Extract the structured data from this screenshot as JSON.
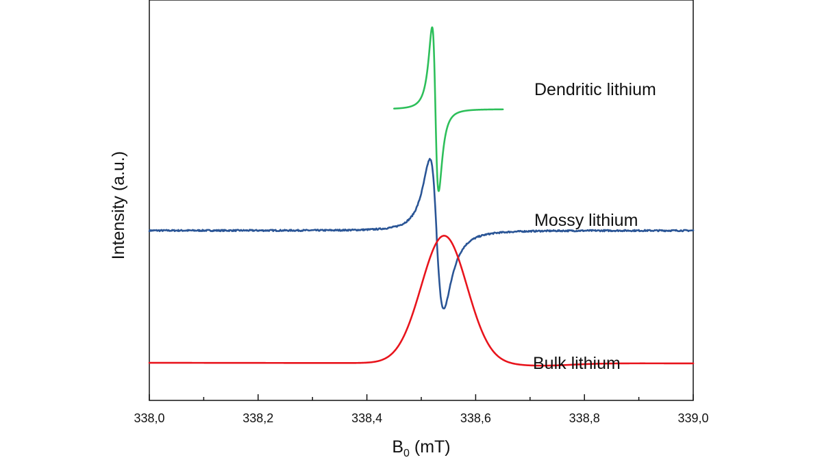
{
  "chart_data": {
    "type": "line",
    "title": "",
    "xlabel_main": "B",
    "xlabel_sub": "0",
    "xlabel_unit": " (mT)",
    "ylabel": "Intensity (a.u.)",
    "xlim": [
      338.0,
      339.0
    ],
    "x_ticks": [
      338.0,
      338.2,
      338.4,
      338.6,
      338.8,
      339.0
    ],
    "x_tick_labels": [
      "338,0",
      "338,2",
      "338,4",
      "338,6",
      "338,8",
      "339,0"
    ],
    "y_ticks_shown": false,
    "grid": false,
    "legend": "none",
    "series": [
      {
        "name": "Dendritic lithium",
        "color": "#2dbf5a",
        "shape": "derivative-lorentzian",
        "x_range": [
          338.45,
          338.65
        ],
        "center": 338.526,
        "width": 0.006,
        "baseline": 3.3,
        "amplitude": 1.0
      },
      {
        "name": "Mossy lithium",
        "color": "#2a5596",
        "shape": "asymmetric-derivative",
        "x_range": [
          338.0,
          339.0
        ],
        "center": 338.528,
        "width": 0.012,
        "baseline": 2.3,
        "amplitude": 0.95,
        "noise": 0.012
      },
      {
        "name": "Bulk lithium",
        "color": "#e8141c",
        "shape": "gaussian-absorption",
        "x_range": [
          338.0,
          339.0
        ],
        "center": 338.542,
        "width": 0.042,
        "baseline": 1.21,
        "amplitude": 1.05
      }
    ]
  }
}
